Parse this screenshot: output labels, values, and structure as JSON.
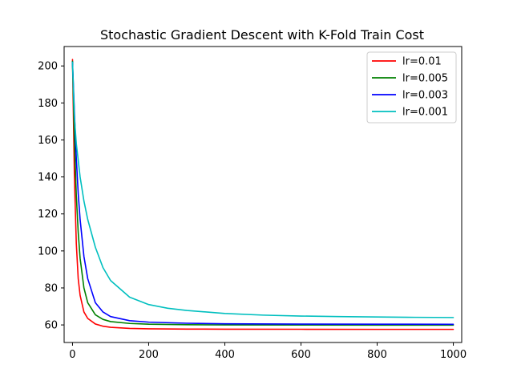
{
  "chart_data": {
    "type": "line",
    "title": "Stochastic Gradient Descent with K-Fold Train Cost",
    "xlabel": "",
    "ylabel": "",
    "xlim": [
      -22,
      1022
    ],
    "ylim": [
      50.5,
      210.5
    ],
    "xticks": [
      0,
      200,
      400,
      600,
      800,
      1000
    ],
    "yticks": [
      60,
      80,
      100,
      120,
      140,
      160,
      180,
      200
    ],
    "legend_position": "top-right",
    "grid": false,
    "series": [
      {
        "name": "lr=0.01",
        "color": "#ff0000",
        "x": [
          0,
          5,
          10,
          15,
          20,
          30,
          40,
          60,
          80,
          100,
          150,
          200,
          300,
          400,
          600,
          800,
          1000
        ],
        "y": [
          203.5,
          140,
          104,
          85,
          76,
          67,
          63.5,
          60.5,
          59.3,
          58.7,
          58.1,
          57.9,
          57.75,
          57.7,
          57.65,
          57.6,
          57.6
        ]
      },
      {
        "name": "lr=0.005",
        "color": "#008000",
        "x": [
          0,
          5,
          10,
          15,
          20,
          30,
          40,
          60,
          80,
          100,
          150,
          200,
          300,
          400,
          600,
          800,
          1000
        ],
        "y": [
          202.5,
          160,
          130,
          110,
          96,
          80,
          72,
          65.5,
          63,
          61.8,
          60.8,
          60.4,
          60.1,
          60.0,
          59.95,
          59.9,
          59.9
        ]
      },
      {
        "name": "lr=0.003",
        "color": "#0000ff",
        "x": [
          0,
          5,
          10,
          15,
          20,
          30,
          40,
          60,
          80,
          100,
          150,
          200,
          300,
          400,
          600,
          800,
          1000
        ],
        "y": [
          202,
          175,
          150,
          131,
          117,
          97,
          85,
          72,
          67,
          64.5,
          62.3,
          61.5,
          60.9,
          60.6,
          60.45,
          60.4,
          60.35
        ]
      },
      {
        "name": "lr=0.001",
        "color": "#00bfbf",
        "x": [
          0,
          5,
          10,
          20,
          30,
          40,
          60,
          80,
          100,
          150,
          200,
          250,
          300,
          400,
          500,
          600,
          700,
          800,
          900,
          1000
        ],
        "y": [
          202,
          172,
          158,
          140,
          127,
          117,
          102,
          91,
          84,
          75,
          71,
          69,
          67.8,
          66.2,
          65.3,
          64.8,
          64.5,
          64.3,
          64.1,
          64.0
        ]
      }
    ]
  }
}
